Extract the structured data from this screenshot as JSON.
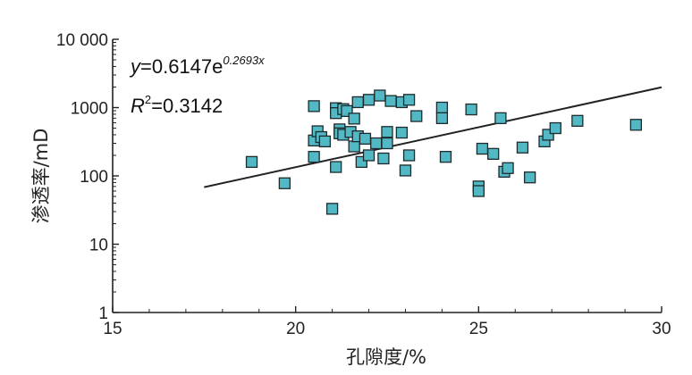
{
  "chart_data": {
    "type": "scatter",
    "title": "",
    "xlabel": "孔隙度/%",
    "ylabel": "渗透率/mD",
    "xlim": [
      15,
      30
    ],
    "ylim": [
      1,
      10000
    ],
    "y_scale": "log",
    "x_ticks": [
      15,
      20,
      25,
      30
    ],
    "x_tick_labels": [
      "15",
      "20",
      "25",
      "30"
    ],
    "y_ticks": [
      1,
      10,
      100,
      1000,
      10000
    ],
    "y_tick_labels": [
      "1",
      "10",
      "100",
      "1000",
      "10 000"
    ],
    "grid": false,
    "legend": "none",
    "marker": "square",
    "marker_color": "#52b8c4",
    "line_color": "#222222",
    "annotations": {
      "equation_prefix": "y",
      "equation_body": "=0.6147e",
      "equation_exponent": "0.2693x",
      "r2_prefix": "R",
      "r2_sup": "2",
      "r2_value": "=0.3142"
    },
    "fit": {
      "type": "exponential",
      "a": 0.6147,
      "b": 0.2693,
      "x_range": [
        17.5,
        30
      ]
    },
    "series": [
      {
        "points": [
          [
            18.8,
            160
          ],
          [
            19.7,
            78
          ],
          [
            20.5,
            1050
          ],
          [
            20.5,
            330
          ],
          [
            20.6,
            450
          ],
          [
            20.5,
            190
          ],
          [
            20.7,
            370
          ],
          [
            20.8,
            320
          ],
          [
            21.0,
            33
          ],
          [
            21.1,
            135
          ],
          [
            21.1,
            980
          ],
          [
            21.1,
            830
          ],
          [
            21.2,
            480
          ],
          [
            21.2,
            420
          ],
          [
            21.3,
            950
          ],
          [
            21.3,
            400
          ],
          [
            21.4,
            890
          ],
          [
            21.5,
            440
          ],
          [
            21.6,
            690
          ],
          [
            21.6,
            270
          ],
          [
            21.7,
            1200
          ],
          [
            21.7,
            380
          ],
          [
            21.8,
            160
          ],
          [
            21.9,
            350
          ],
          [
            22.0,
            1300
          ],
          [
            22.0,
            200
          ],
          [
            22.2,
            300
          ],
          [
            22.3,
            1500
          ],
          [
            22.4,
            180
          ],
          [
            22.5,
            440
          ],
          [
            22.5,
            300
          ],
          [
            22.6,
            1250
          ],
          [
            22.9,
            1200
          ],
          [
            22.9,
            430
          ],
          [
            23.0,
            120
          ],
          [
            23.1,
            1300
          ],
          [
            23.1,
            200
          ],
          [
            23.3,
            750
          ],
          [
            24.0,
            1000
          ],
          [
            24.0,
            700
          ],
          [
            24.1,
            190
          ],
          [
            24.8,
            940
          ],
          [
            25.0,
            70
          ],
          [
            25.0,
            60
          ],
          [
            25.1,
            250
          ],
          [
            25.4,
            210
          ],
          [
            25.6,
            700
          ],
          [
            25.7,
            115
          ],
          [
            25.8,
            130
          ],
          [
            26.2,
            260
          ],
          [
            26.4,
            95
          ],
          [
            26.8,
            320
          ],
          [
            26.9,
            400
          ],
          [
            27.1,
            500
          ],
          [
            27.7,
            640
          ],
          [
            29.3,
            560
          ]
        ]
      }
    ]
  }
}
